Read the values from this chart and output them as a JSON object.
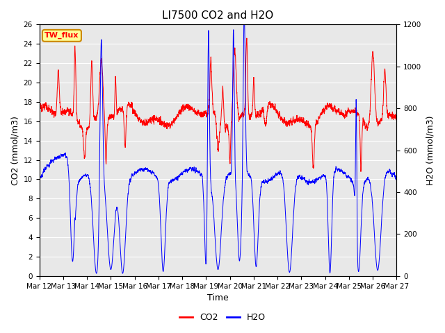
{
  "title": "LI7500 CO2 and H2O",
  "xlabel": "Time",
  "ylabel_left": "CO2 (mmol/m3)",
  "ylabel_right": "H2O (mmol/m3)",
  "co2_ylim": [
    0,
    26
  ],
  "h2o_ylim": [
    0,
    1200
  ],
  "co2_yticks": [
    0,
    2,
    4,
    6,
    8,
    10,
    12,
    14,
    16,
    18,
    20,
    22,
    24,
    26
  ],
  "h2o_yticks": [
    0,
    200,
    400,
    600,
    800,
    1000,
    1200
  ],
  "xtick_labels": [
    "Mar 12",
    "Mar 13",
    "Mar 14",
    "Mar 15",
    "Mar 16",
    "Mar 17",
    "Mar 18",
    "Mar 19",
    "Mar 20",
    "Mar 21",
    "Mar 22",
    "Mar 23",
    "Mar 24",
    "Mar 25",
    "Mar 26",
    "Mar 27"
  ],
  "annotation_text": "TW_flux",
  "annotation_bg": "#FFFF99",
  "annotation_border": "#CC8800",
  "co2_color": "#FF0000",
  "h2o_color": "#0000FF",
  "plot_bg": "#E8E8E8",
  "grid_color": "#FFFFFF",
  "title_fontsize": 11,
  "tick_fontsize": 7.5,
  "label_fontsize": 9,
  "legend_fontsize": 9
}
